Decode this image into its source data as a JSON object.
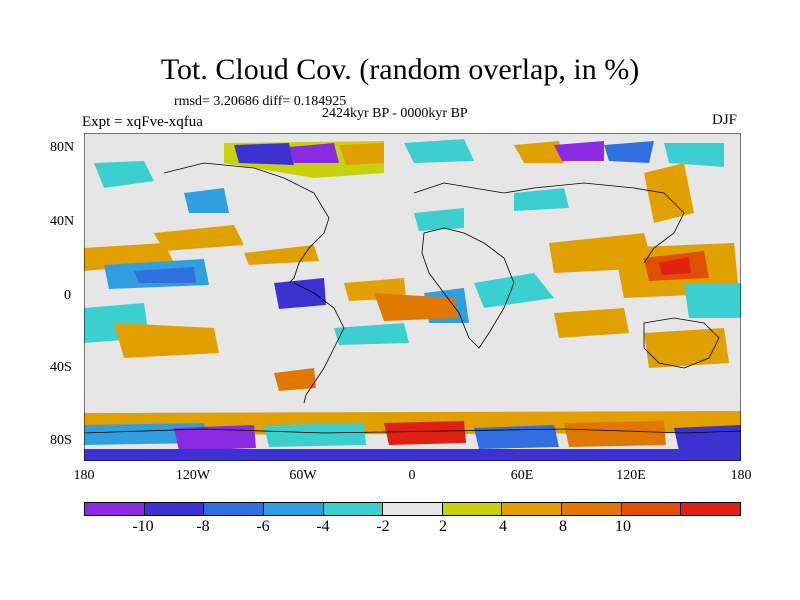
{
  "figure": {
    "title": "Tot. Cloud Cov. (random overlap, in %)",
    "stats": "rmsd= 3.20686 diff= 0.184925",
    "period": "2424kyr BP - 0000kyr BP",
    "experiment": "Expt = xqFve-xqfua",
    "season": "DJF"
  },
  "map": {
    "projection": "cylindrical-equidistant",
    "lon_range": [
      -180,
      180
    ],
    "lat_range": [
      -90,
      90
    ],
    "background_color": "#e6e6e6",
    "lat_ticks": [
      {
        "label": "80N",
        "value": 80
      },
      {
        "label": "40N",
        "value": 40
      },
      {
        "label": "0",
        "value": 0
      },
      {
        "label": "40S",
        "value": -40
      },
      {
        "label": "80S",
        "value": -80
      }
    ],
    "lon_ticks": [
      {
        "label": "180",
        "value": -180
      },
      {
        "label": "120W",
        "value": -120
      },
      {
        "label": "60W",
        "value": -60
      },
      {
        "label": "0",
        "value": 0
      },
      {
        "label": "60E",
        "value": 60
      },
      {
        "label": "120E",
        "value": 120
      },
      {
        "label": "180",
        "value": 180
      }
    ]
  },
  "colorbar": {
    "colors": [
      "#8a2be2",
      "#3c32d2",
      "#2f6fe0",
      "#2f9fe0",
      "#3ccfd0",
      "#e6e6e6",
      "#c8d20a",
      "#e0a000",
      "#e07800",
      "#e05000",
      "#e02010"
    ],
    "labels": [
      {
        "text": "-10",
        "value": -10
      },
      {
        "text": "-8",
        "value": -8
      },
      {
        "text": "-6",
        "value": -6
      },
      {
        "text": "-4",
        "value": -4
      },
      {
        "text": "-2",
        "value": -2
      },
      {
        "text": "2",
        "value": 2
      },
      {
        "text": "4",
        "value": 4
      },
      {
        "text": "8",
        "value": 8
      },
      {
        "text": "10",
        "value": 10
      }
    ]
  }
}
